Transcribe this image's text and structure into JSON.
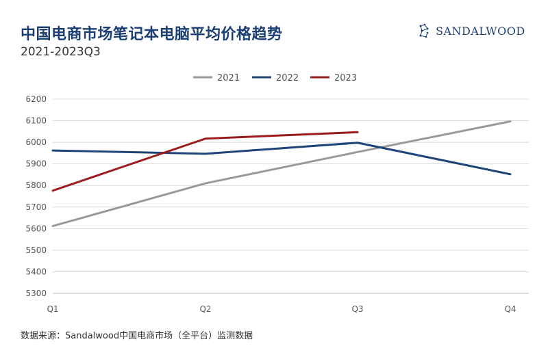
{
  "header": {
    "title": "中国电商市场笔记本电脑平均价格趋势",
    "subtitle": "2021-2023Q3"
  },
  "logo": {
    "brand": "SANDALWOOD",
    "icon": "constellation-icon",
    "color": "#1c3f73"
  },
  "footer": {
    "source": "数据来源：Sandalwood中国电商市场（全平台）监测数据"
  },
  "chart_data": {
    "type": "line",
    "title": "中国电商市场笔记本电脑平均价格趋势",
    "subtitle": "2021-2023Q3",
    "xlabel": "",
    "ylabel": "",
    "categories": [
      "Q1",
      "Q2",
      "Q3",
      "Q4"
    ],
    "ylim": [
      5300,
      6200
    ],
    "yticks": [
      5300,
      5400,
      5500,
      5600,
      5700,
      5800,
      5900,
      6000,
      6100,
      6200
    ],
    "grid": true,
    "legend_position": "top-center",
    "series": [
      {
        "name": "2021",
        "color": "#999999",
        "values": [
          5612,
          5810,
          5955,
          6097
        ]
      },
      {
        "name": "2022",
        "color": "#1c4476",
        "values": [
          5962,
          5947,
          5998,
          5852
        ]
      },
      {
        "name": "2023",
        "color": "#9b1c1f",
        "values": [
          5776,
          6017,
          6047,
          null
        ]
      }
    ]
  }
}
